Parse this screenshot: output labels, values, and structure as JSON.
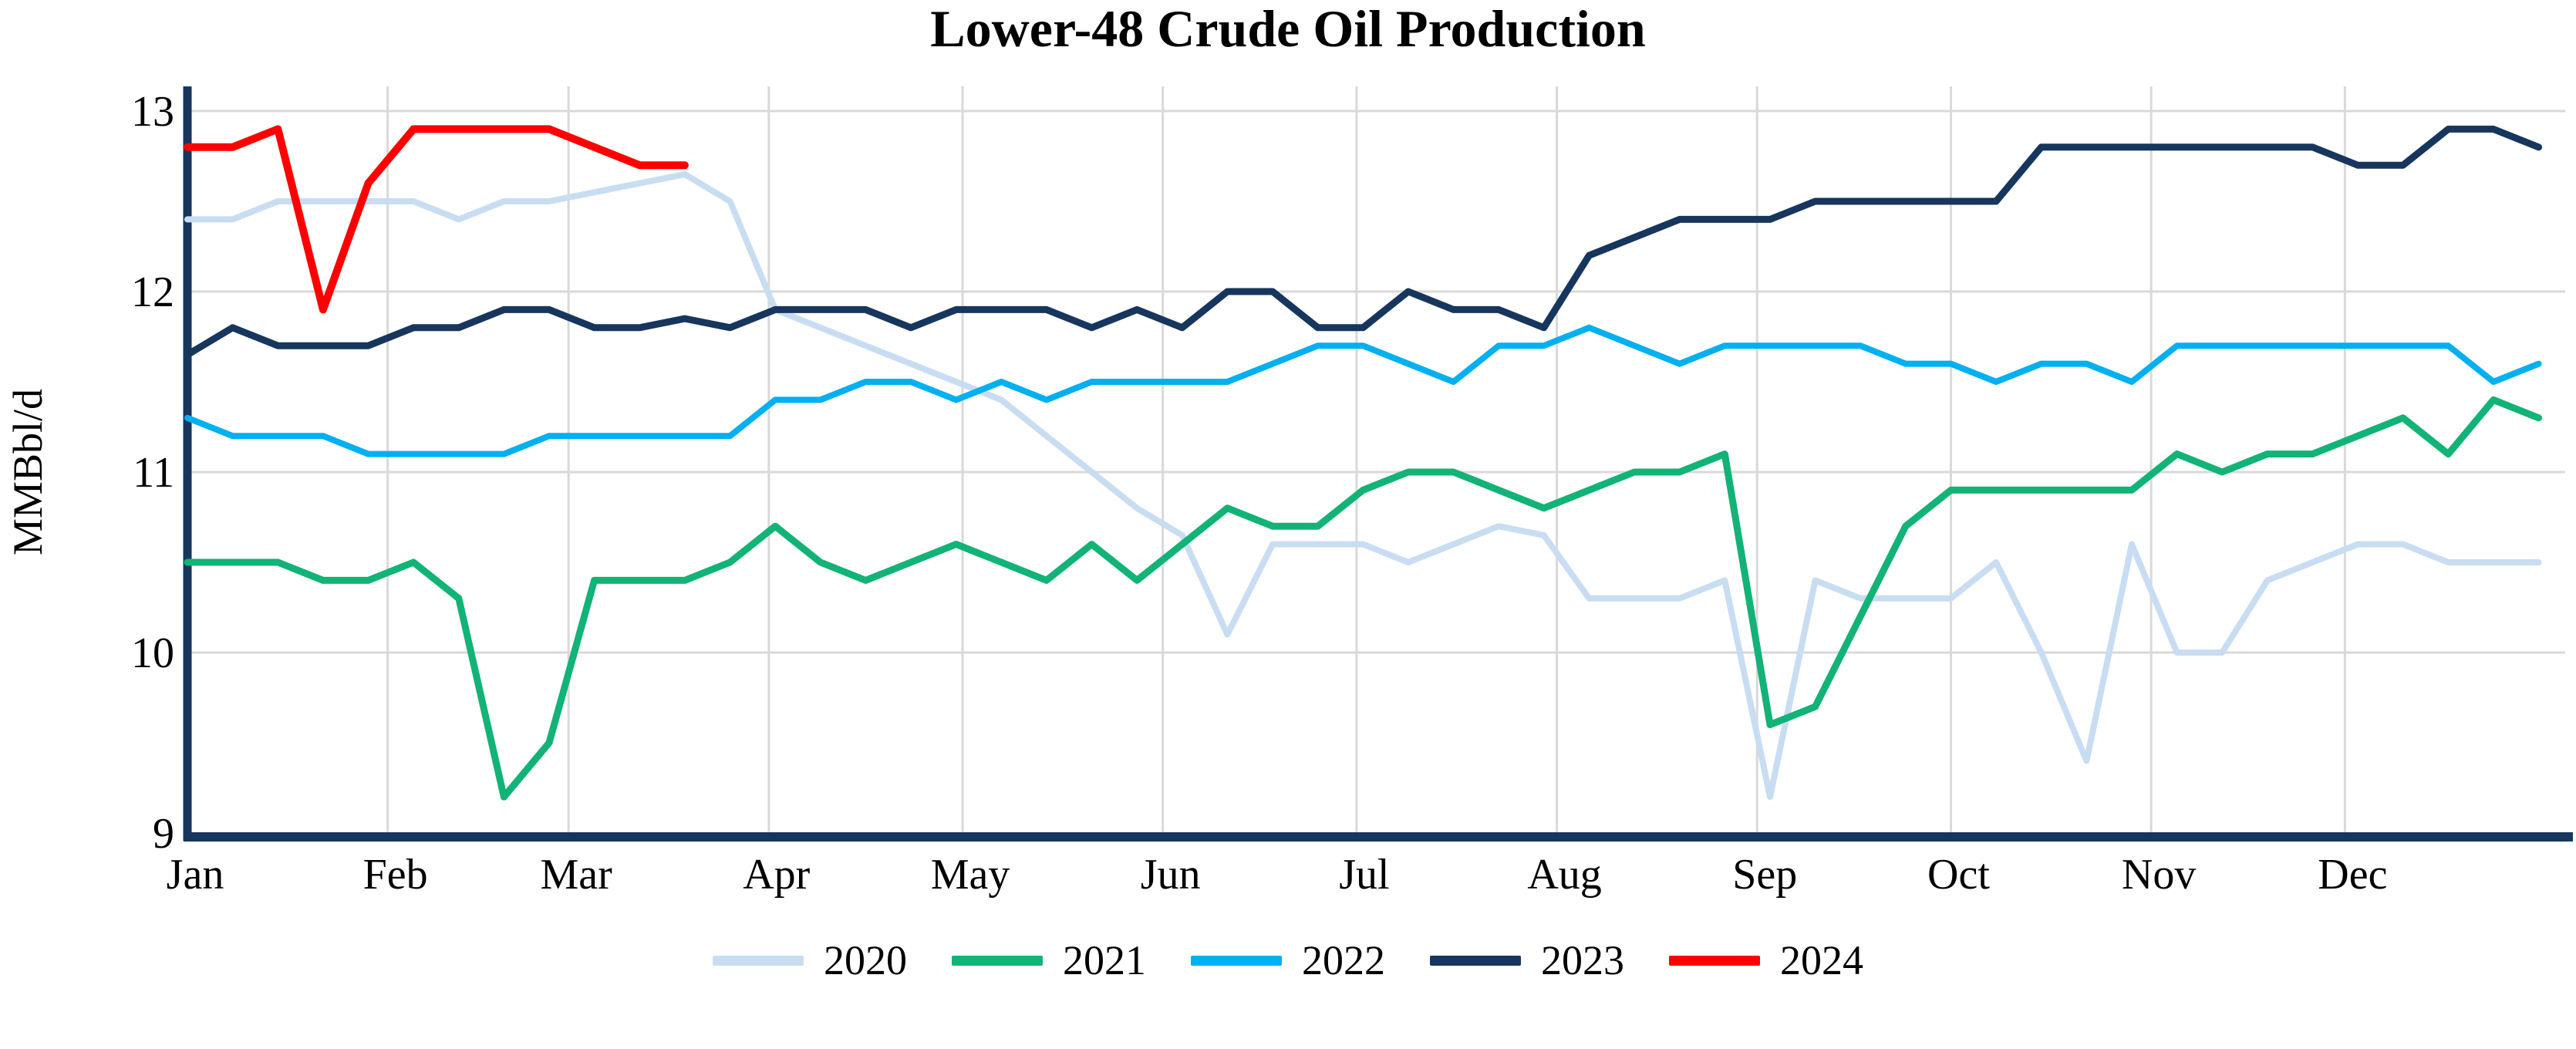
{
  "chart_data": {
    "type": "line",
    "title": "Lower-48 Crude Oil Production",
    "ylabel": "MMBbl/d",
    "xlabel": "",
    "ylim": [
      9,
      13
    ],
    "y_ticks": [
      13,
      12,
      11,
      10,
      9
    ],
    "x_tick_labels": [
      "Jan",
      "Feb",
      "Mar",
      "Apr",
      "May",
      "Jun",
      "Jul",
      "Aug",
      "Sep",
      "Oct",
      "Nov",
      "Dec"
    ],
    "grid": "on",
    "legend_position": "bottom-center",
    "x_unit": "week-of-year",
    "series": [
      {
        "name": "2020",
        "color": "#C8DDF2",
        "width": 8,
        "values": [
          12.4,
          12.4,
          12.5,
          12.5,
          12.5,
          12.5,
          12.4,
          12.5,
          12.5,
          12.55,
          12.6,
          12.65,
          12.5,
          11.9,
          11.8,
          11.7,
          11.6,
          11.5,
          11.4,
          11.2,
          11.0,
          10.8,
          10.65,
          10.1,
          10.6,
          10.6,
          10.6,
          10.5,
          10.6,
          10.7,
          10.65,
          10.3,
          10.3,
          10.3,
          10.4,
          9.2,
          10.4,
          10.3,
          10.3,
          10.3,
          10.5,
          10.0,
          9.4,
          10.6,
          10.0,
          10.0,
          10.4,
          10.5,
          10.6,
          10.6,
          10.5,
          10.5,
          10.5
        ]
      },
      {
        "name": "2021",
        "color": "#12B376",
        "width": 9,
        "values": [
          10.5,
          10.5,
          10.5,
          10.4,
          10.4,
          10.5,
          10.3,
          9.2,
          9.5,
          10.4,
          10.4,
          10.4,
          10.5,
          10.7,
          10.5,
          10.4,
          10.5,
          10.6,
          10.5,
          10.4,
          10.6,
          10.4,
          10.6,
          10.8,
          10.7,
          10.7,
          10.9,
          11.0,
          11.0,
          10.9,
          10.8,
          10.9,
          11.0,
          11.0,
          11.1,
          9.6,
          9.7,
          10.2,
          10.7,
          10.9,
          10.9,
          10.9,
          10.9,
          10.9,
          11.1,
          11.0,
          11.1,
          11.1,
          11.2,
          11.3,
          11.1,
          11.4,
          11.3
        ]
      },
      {
        "name": "2022",
        "color": "#00B0F0",
        "width": 8,
        "values": [
          11.3,
          11.2,
          11.2,
          11.2,
          11.1,
          11.1,
          11.1,
          11.1,
          11.2,
          11.2,
          11.2,
          11.2,
          11.2,
          11.4,
          11.4,
          11.5,
          11.5,
          11.4,
          11.5,
          11.4,
          11.5,
          11.5,
          11.5,
          11.5,
          11.6,
          11.7,
          11.7,
          11.6,
          11.5,
          11.7,
          11.7,
          11.8,
          11.7,
          11.6,
          11.7,
          11.7,
          11.7,
          11.7,
          11.6,
          11.6,
          11.5,
          11.6,
          11.6,
          11.5,
          11.7,
          11.7,
          11.7,
          11.7,
          11.7,
          11.7,
          11.7,
          11.5,
          11.6
        ]
      },
      {
        "name": "2023",
        "color": "#17365D",
        "width": 9,
        "values": [
          11.65,
          11.8,
          11.7,
          11.7,
          11.7,
          11.8,
          11.8,
          11.9,
          11.9,
          11.8,
          11.8,
          11.85,
          11.8,
          11.9,
          11.9,
          11.9,
          11.8,
          11.9,
          11.9,
          11.9,
          11.8,
          11.9,
          11.8,
          12.0,
          12.0,
          11.8,
          11.8,
          12.0,
          11.9,
          11.9,
          11.8,
          12.2,
          12.3,
          12.4,
          12.4,
          12.4,
          12.5,
          12.5,
          12.5,
          12.5,
          12.5,
          12.8,
          12.8,
          12.8,
          12.8,
          12.8,
          12.8,
          12.8,
          12.7,
          12.7,
          12.9,
          12.9,
          12.8
        ]
      },
      {
        "name": "2024",
        "color": "#FF0000",
        "width": 10,
        "values": [
          12.8,
          12.8,
          12.9,
          11.9,
          12.6,
          12.9,
          12.9,
          12.9,
          12.9,
          12.8,
          12.7,
          12.7
        ]
      }
    ],
    "axis_color": "#17365D",
    "gridline_color": "#D9D9D9"
  },
  "legend": {
    "items": [
      {
        "label": "2020",
        "color": "#C8DDF2"
      },
      {
        "label": "2021",
        "color": "#12B376"
      },
      {
        "label": "2022",
        "color": "#00B0F0"
      },
      {
        "label": "2023",
        "color": "#17365D"
      },
      {
        "label": "2024",
        "color": "#FF0000"
      }
    ]
  }
}
